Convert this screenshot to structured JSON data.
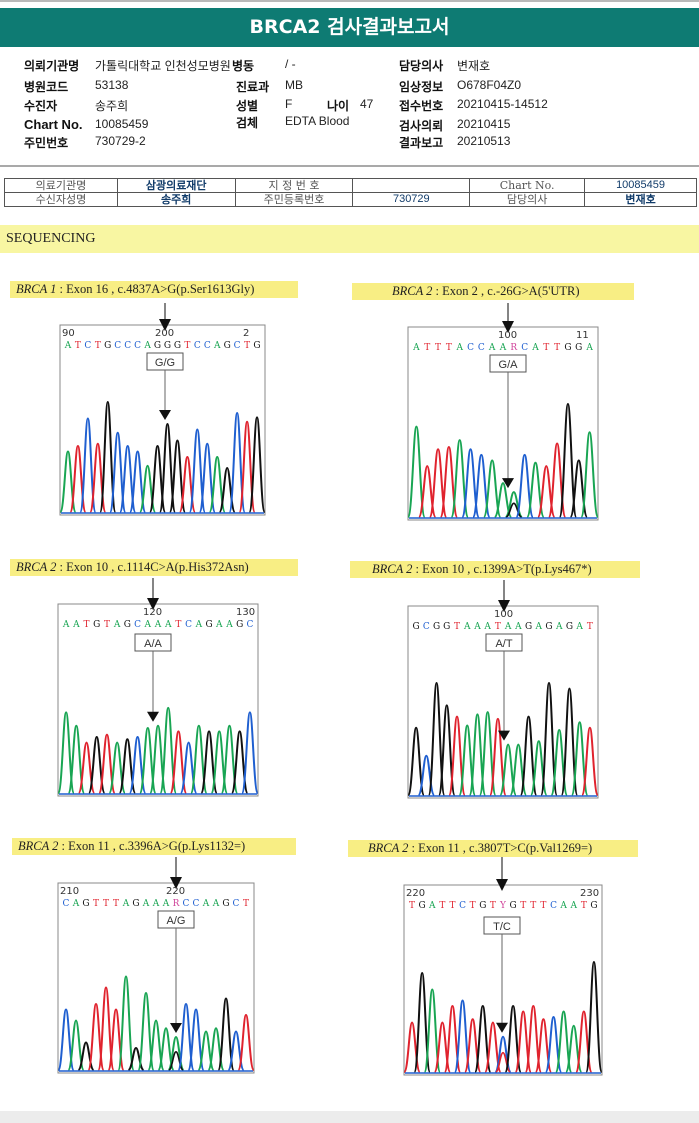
{
  "title": "BRCA2 검사결과보고서",
  "info": {
    "rows": [
      {
        "l1": "의뢰기관명",
        "v1": "가톨릭대학교 인천성모병원",
        "l2": "병동",
        "v2": "/ -",
        "l3": "담당의사",
        "v3": "변재호"
      },
      {
        "l1": "병원코드",
        "v1": "53138",
        "l2": "진료과",
        "v2": "MB",
        "l3": "임상정보",
        "v3": "O678F04Z0"
      },
      {
        "l1": "수진자",
        "v1": "송주희",
        "l2": "성별",
        "v2": "F",
        "l2b": "나이",
        "v2b": "47",
        "l3": "접수번호",
        "v3": "20210415-14512"
      },
      {
        "l1": "Chart No.",
        "v1": "10085459",
        "l2": "검체",
        "v2": "EDTA Blood",
        "l3": "검사의뢰",
        "v3": "20210415"
      },
      {
        "l1": "주민번호",
        "v1": "730729-2",
        "l3": "결과보고",
        "v3": "20210513"
      }
    ]
  },
  "header_table": {
    "r1": [
      "의료기관명",
      "삼광의료재단",
      "지 정 번 호",
      "",
      "Chart No.",
      "10085459"
    ],
    "r2": [
      "수신자성명",
      "송주희",
      "주민등록번호",
      "730729",
      "담당의사",
      "변재호"
    ]
  },
  "section_title": "SEQUENCING",
  "colors": {
    "A": "#19a553",
    "C": "#1f5fd0",
    "G": "#111111",
    "T": "#e0232e",
    "R": "#d0449a",
    "Y": "#d0449a"
  },
  "panels": [
    {
      "gene": "BRCA 1",
      "desc": " : Exon 16 , c.4837A>G(p.Ser1613Gly)",
      "call": "G/G",
      "pos_left": "90",
      "pos_mid": "200",
      "pos_right": "2",
      "seq": "ATCTGCCCAGGGTCCAGCTG"
    },
    {
      "gene": "BRCA 2",
      "desc": " : Exon 2 , c.-26G>A(5'UTR)",
      "call": "G/A",
      "pos_left": "",
      "pos_mid": "100",
      "pos_right": "11",
      "seq": "ATTTACCAARCATTGGA"
    },
    {
      "gene": "BRCA 2",
      "desc": " : Exon 10 , c.1114C>A(p.His372Asn)",
      "call": "A/A",
      "pos_left": "",
      "pos_mid": "120",
      "pos_right": "130",
      "seq": "AATGTAGCAAATCAGAAGC"
    },
    {
      "gene": "BRCA 2",
      "desc": " : Exon 10 , c.1399A>T(p.Lys467*)",
      "call": "A/T",
      "pos_left": "",
      "pos_mid": "100",
      "pos_right": "",
      "seq": "GCGGTAAATAAGAGAGAT"
    },
    {
      "gene": "BRCA 2",
      "desc": " : Exon 11 , c.3396A>G(p.Lys1132=)",
      "call": "A/G",
      "pos_left": "210",
      "pos_mid": "220",
      "pos_right": "",
      "seq": "CAGTTTAGAAARCCAAGCT"
    },
    {
      "gene": "BRCA 2",
      "desc": " : Exon 11 , c.3807T>C(p.Val1269=)",
      "call": "T/C",
      "pos_left": "220",
      "pos_mid": "",
      "pos_right": "230",
      "seq": "TGATTCTGTYGTTTCAATG"
    }
  ]
}
